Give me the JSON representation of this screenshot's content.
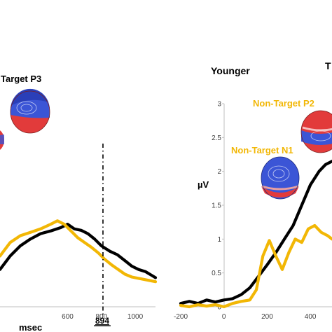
{
  "chart_data": [
    {
      "type": "line",
      "panel": "left (cropped)",
      "title": "",
      "annotations": {
        "component": "Target P3",
        "marker_value": "894"
      },
      "xlabel": "msec",
      "ylabel": "",
      "x_ticks": [
        "600",
        "800",
        "1000"
      ],
      "xlim": [
        200,
        1120
      ],
      "ylim": [
        0,
        3
      ],
      "grid": false,
      "colors": {
        "black_series": "#000000",
        "gold_series": "#f2b705"
      },
      "series": [
        {
          "color": "black",
          "x": [
            200,
            260,
            320,
            380,
            440,
            500,
            560,
            600,
            640,
            680,
            720,
            760,
            800,
            850,
            894,
            940,
            980,
            1020,
            1060,
            1100,
            1120
          ],
          "y": [
            0.55,
            0.75,
            0.9,
            1.0,
            1.08,
            1.12,
            1.17,
            1.22,
            1.15,
            1.13,
            1.08,
            1.0,
            0.9,
            0.82,
            0.77,
            0.68,
            0.6,
            0.55,
            0.52,
            0.46,
            0.43
          ]
        },
        {
          "color": "gold",
          "x": [
            200,
            260,
            320,
            380,
            440,
            500,
            540,
            580,
            620,
            660,
            700,
            740,
            780,
            820,
            860,
            894,
            940,
            980,
            1020,
            1060,
            1120
          ],
          "y": [
            0.75,
            0.95,
            1.05,
            1.1,
            1.15,
            1.22,
            1.27,
            1.22,
            1.12,
            1.02,
            0.95,
            0.88,
            0.8,
            0.7,
            0.62,
            0.56,
            0.48,
            0.44,
            0.42,
            0.4,
            0.37
          ]
        }
      ]
    },
    {
      "type": "line",
      "panel": "right (cropped)",
      "title": "Younger",
      "annotations": {
        "p2": "Non-Target P2",
        "n1": "Non-Target N1",
        "cut_label": "T"
      },
      "xlabel": "",
      "ylabel": "µV",
      "x_ticks": [
        "-200",
        "0",
        "200",
        "400"
      ],
      "y_ticks": [
        "0",
        "0.5",
        "1",
        "1.5",
        "2",
        "2.5",
        "3"
      ],
      "xlim": [
        -200,
        500
      ],
      "ylim": [
        0,
        3
      ],
      "grid": false,
      "colors": {
        "black_series": "#000000",
        "gold_series": "#f2b705"
      },
      "series": [
        {
          "color": "black",
          "x": [
            -200,
            -160,
            -120,
            -80,
            -40,
            0,
            40,
            80,
            120,
            160,
            200,
            240,
            280,
            320,
            360,
            400,
            440,
            470,
            500
          ],
          "y": [
            0.05,
            0.08,
            0.05,
            0.1,
            0.07,
            0.1,
            0.12,
            0.18,
            0.28,
            0.45,
            0.62,
            0.8,
            1.0,
            1.2,
            1.5,
            1.8,
            2.0,
            2.1,
            2.15
          ]
        },
        {
          "color": "gold",
          "x": [
            -200,
            -160,
            -120,
            -80,
            -40,
            0,
            40,
            80,
            120,
            150,
            180,
            210,
            240,
            270,
            300,
            330,
            360,
            390,
            420,
            450,
            480,
            500
          ],
          "y": [
            0.02,
            0.0,
            0.03,
            0.01,
            0.03,
            0.0,
            0.05,
            0.08,
            0.1,
            0.25,
            0.75,
            0.98,
            0.75,
            0.55,
            0.8,
            1.0,
            0.95,
            1.15,
            1.2,
            1.1,
            1.05,
            1.0
          ]
        }
      ]
    }
  ]
}
